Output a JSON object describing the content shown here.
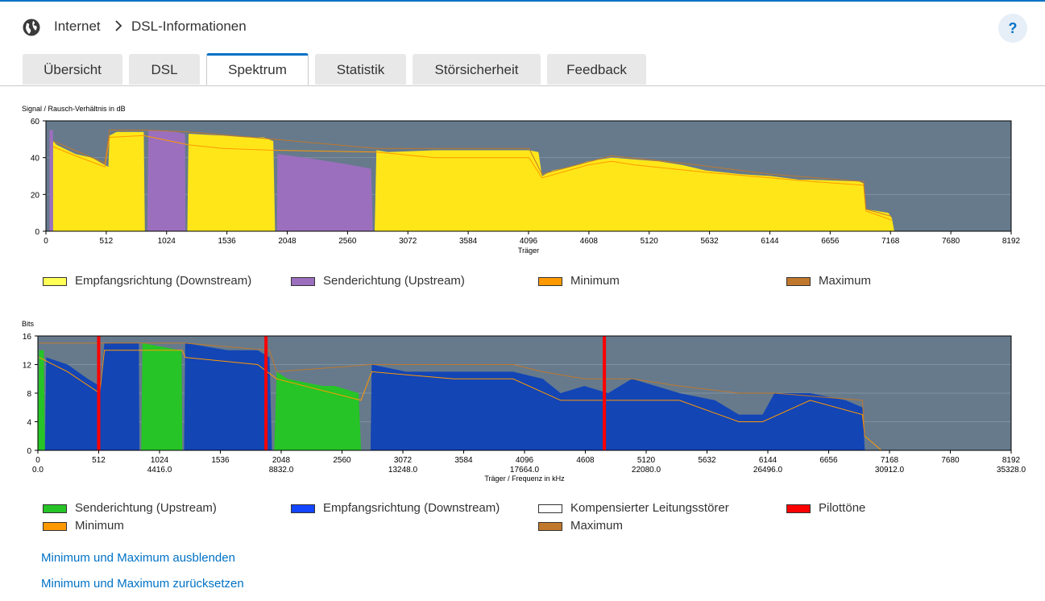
{
  "header": {
    "breadcrumb_1": "Internet",
    "breadcrumb_2": "DSL-Informationen",
    "help_label": "?"
  },
  "tabs": [
    "Übersicht",
    "DSL",
    "Spektrum",
    "Statistik",
    "Störsicherheit",
    "Feedback"
  ],
  "active_tab": "Spektrum",
  "colors": {
    "accent": "#0072c6",
    "plot_bg": "#667a8c",
    "downstream_snr": "#ffe619",
    "upstream_snr": "#9b6fbe",
    "minimum": "#ff9900",
    "maximum": "#c0782d",
    "upstream_bits": "#26c426",
    "downstream_bits": "#1345b5",
    "pilot": "#ff0000"
  },
  "chart_data": [
    {
      "type": "area",
      "title": "Signal / Rausch-Verhältnis in dB",
      "xlabel": "Träger",
      "ylabel": "",
      "xlim": [
        0,
        8192
      ],
      "ylim": [
        0,
        60
      ],
      "xticks": [
        0,
        512,
        1024,
        1536,
        2048,
        2560,
        3072,
        3584,
        4096,
        4608,
        5120,
        5632,
        6144,
        6656,
        7168,
        7680,
        8192
      ],
      "yticks": [
        0,
        20,
        40,
        60
      ],
      "series": [
        {
          "name": "Empfangsrichtung (Downstream)",
          "color": "#ffe619",
          "segments": [
            [
              [
                60,
                0
              ],
              [
                60,
                49
              ],
              [
                90,
                47
              ],
              [
                250,
                42
              ],
              [
                390,
                40
              ],
              [
                500,
                36
              ],
              [
                530,
                35
              ],
              [
                540,
                52
              ],
              [
                600,
                54
              ],
              [
                800,
                54
              ],
              [
                830,
                54
              ],
              [
                840,
                0
              ]
            ],
            [
              [
                1200,
                0
              ],
              [
                1210,
                53
              ],
              [
                1500,
                52
              ],
              [
                1700,
                51
              ],
              [
                1850,
                51
              ],
              [
                1930,
                49
              ],
              [
                1945,
                0
              ]
            ],
            [
              [
                2790,
                0
              ],
              [
                2805,
                44
              ],
              [
                2900,
                43
              ],
              [
                3300,
                44
              ],
              [
                3600,
                44
              ],
              [
                3900,
                44
              ],
              [
                4100,
                44
              ],
              [
                4180,
                43
              ],
              [
                4210,
                30
              ],
              [
                4300,
                33
              ],
              [
                4450,
                35
              ],
              [
                4600,
                38
              ],
              [
                4800,
                40
              ],
              [
                5000,
                39
              ],
              [
                5200,
                38
              ],
              [
                5400,
                36
              ],
              [
                5600,
                33
              ],
              [
                5900,
                31
              ],
              [
                6150,
                30
              ],
              [
                6400,
                28
              ],
              [
                6500,
                28
              ],
              [
                6900,
                27
              ],
              [
                6940,
                26
              ],
              [
                6960,
                12
              ],
              [
                7150,
                10
              ],
              [
                7180,
                7
              ],
              [
                7200,
                0
              ]
            ]
          ]
        },
        {
          "name": "Senderichtung (Upstream)",
          "color": "#9b6fbe",
          "segments": [
            [
              [
                30,
                0
              ],
              [
                30,
                55
              ],
              [
                60,
                55
              ],
              [
                60,
                0
              ]
            ],
            [
              [
                860,
                0
              ],
              [
                870,
                55
              ],
              [
                1100,
                54
              ],
              [
                1180,
                53
              ],
              [
                1185,
                0
              ]
            ],
            [
              [
                1960,
                0
              ],
              [
                1965,
                42
              ],
              [
                2200,
                40
              ],
              [
                2500,
                37
              ],
              [
                2760,
                34
              ],
              [
                2775,
                0
              ]
            ]
          ]
        },
        {
          "name": "Minimum",
          "color": "#ff9900",
          "points": [
            [
              60,
              46
            ],
            [
              250,
              41
            ],
            [
              500,
              35
            ],
            [
              540,
              51
            ],
            [
              830,
              52
            ],
            [
              1210,
              47
            ],
            [
              1500,
              45
            ],
            [
              1930,
              44
            ],
            [
              2805,
              43
            ],
            [
              3300,
              40
            ],
            [
              3600,
              40
            ],
            [
              4100,
              40
            ],
            [
              4210,
              29
            ],
            [
              4600,
              36
            ],
            [
              4800,
              38
            ],
            [
              5000,
              36
            ],
            [
              5600,
              32
            ],
            [
              6150,
              29
            ],
            [
              6500,
              27
            ],
            [
              6940,
              25
            ],
            [
              6960,
              11
            ],
            [
              7180,
              6
            ]
          ]
        },
        {
          "name": "Maximum",
          "color": "#c0782d",
          "points": [
            [
              60,
              49
            ],
            [
              500,
              37
            ],
            [
              540,
              55
            ],
            [
              830,
              55
            ],
            [
              1210,
              54
            ],
            [
              1930,
              50
            ],
            [
              2805,
              45
            ],
            [
              4100,
              45
            ],
            [
              4210,
              31
            ],
            [
              4800,
              41
            ],
            [
              5400,
              37
            ],
            [
              6150,
              31
            ],
            [
              6940,
              27
            ],
            [
              6960,
              12
            ],
            [
              7180,
              8
            ]
          ]
        }
      ],
      "legend": [
        "Empfangsrichtung (Downstream)",
        "Senderichtung (Upstream)",
        "Minimum",
        "Maximum"
      ]
    },
    {
      "type": "area",
      "title": "Bits",
      "xlabel": "Träger / Frequenz in kHz",
      "ylabel": "",
      "xlim": [
        0,
        8192
      ],
      "ylim": [
        0,
        16
      ],
      "xticks": [
        0,
        512,
        1024,
        1536,
        2048,
        2560,
        3072,
        3584,
        4096,
        4608,
        5120,
        5632,
        6144,
        6656,
        7168,
        7680,
        8192
      ],
      "xticks2": [
        "0.0",
        "",
        "4416.0",
        "",
        "8832.0",
        "",
        "13248.0",
        "",
        "17664.0",
        "",
        "22080.0",
        "",
        "26496.0",
        "",
        "30912.0",
        "",
        "35328.0"
      ],
      "yticks": [
        0,
        4,
        8,
        12,
        16
      ],
      "series": [
        {
          "name": "Senderichtung (Upstream)",
          "color": "#26c426",
          "segments": [
            [
              [
                0,
                0
              ],
              [
                10,
                14
              ],
              [
                50,
                14
              ],
              [
                60,
                0
              ]
            ],
            [
              [
                870,
                0
              ],
              [
                880,
                15
              ],
              [
                1200,
                14
              ],
              [
                1210,
                14
              ],
              [
                1215,
                0
              ]
            ],
            [
              [
                1990,
                0
              ],
              [
                2010,
                11
              ],
              [
                2100,
                10
              ],
              [
                2400,
                9
              ],
              [
                2500,
                9
              ],
              [
                2700,
                8
              ],
              [
                2720,
                0
              ]
            ]
          ]
        },
        {
          "name": "Empfangsrichtung (Downstream)",
          "color": "#1345b5",
          "segments": [
            [
              [
                60,
                0
              ],
              [
                70,
                13
              ],
              [
                250,
                12
              ],
              [
                420,
                10
              ],
              [
                520,
                9
              ],
              [
                560,
                15
              ],
              [
                850,
                15
              ],
              [
                855,
                0
              ]
            ],
            [
              [
                1230,
                0
              ],
              [
                1240,
                15
              ],
              [
                1600,
                14
              ],
              [
                1850,
                14
              ],
              [
                1950,
                13
              ],
              [
                1970,
                0
              ]
            ],
            [
              [
                2800,
                0
              ],
              [
                2810,
                12
              ],
              [
                3100,
                11
              ],
              [
                3500,
                11
              ],
              [
                4000,
                11
              ],
              [
                4250,
                10
              ],
              [
                4400,
                8
              ],
              [
                4600,
                9
              ],
              [
                4800,
                8
              ],
              [
                5000,
                10
              ],
              [
                5200,
                9
              ],
              [
                5400,
                8
              ],
              [
                5700,
                7
              ],
              [
                5900,
                5
              ],
              [
                6100,
                5
              ],
              [
                6200,
                8
              ],
              [
                6500,
                8
              ],
              [
                6800,
                7
              ],
              [
                6940,
                6
              ],
              [
                6960,
                0
              ]
            ]
          ]
        },
        {
          "name": "Minimum",
          "color": "#ff9900",
          "points": [
            [
              10,
              13
            ],
            [
              250,
              11
            ],
            [
              520,
              8
            ],
            [
              560,
              14
            ],
            [
              850,
              14
            ],
            [
              880,
              14
            ],
            [
              1215,
              14
            ],
            [
              1240,
              13
            ],
            [
              1850,
              12
            ],
            [
              2010,
              10
            ],
            [
              2720,
              7
            ],
            [
              2810,
              11
            ],
            [
              3500,
              10
            ],
            [
              4000,
              10
            ],
            [
              4400,
              7
            ],
            [
              4800,
              7
            ],
            [
              5400,
              7
            ],
            [
              5900,
              4
            ],
            [
              6100,
              4
            ],
            [
              6500,
              7
            ],
            [
              6940,
              5
            ],
            [
              6960,
              2
            ],
            [
              7100,
              0
            ]
          ]
        },
        {
          "name": "Maximum",
          "color": "#c0782d",
          "points": [
            [
              10,
              15
            ],
            [
              560,
              15
            ],
            [
              1240,
              15
            ],
            [
              1950,
              14
            ],
            [
              2010,
              11
            ],
            [
              2810,
              12
            ],
            [
              4000,
              12
            ],
            [
              4250,
              11
            ],
            [
              4600,
              10
            ],
            [
              5000,
              10
            ],
            [
              5400,
              9
            ],
            [
              5900,
              8
            ],
            [
              6200,
              8
            ],
            [
              6940,
              7
            ],
            [
              6960,
              2
            ]
          ]
        },
        {
          "name": "Pilottöne",
          "color": "#ff0000",
          "x": [
            512,
            1920,
            4768
          ]
        }
      ],
      "legend": [
        "Senderichtung (Upstream)",
        "Empfangsrichtung (Downstream)",
        "Kompensierter Leitungsstörer",
        "Pilottöne",
        "Minimum",
        "Maximum"
      ]
    }
  ],
  "legend1": {
    "downstream": "Empfangsrichtung (Downstream)",
    "upstream": "Senderichtung (Upstream)",
    "minimum": "Minimum",
    "maximum": "Maximum"
  },
  "legend2": {
    "upstream": "Senderichtung (Upstream)",
    "downstream": "Empfangsrichtung (Downstream)",
    "compensated": "Kompensierter Leitungsstörer",
    "pilot": "Pilottöne",
    "minimum": "Minimum",
    "maximum": "Maximum"
  },
  "links": {
    "hide": "Minimum und Maximum ausblenden",
    "reset": "Minimum und Maximum zurücksetzen"
  }
}
